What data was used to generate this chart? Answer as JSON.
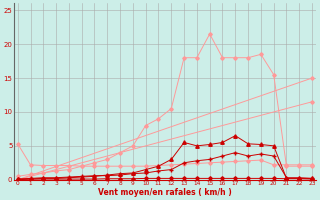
{
  "xlabel": "Vent moyen/en rafales ( km/h )",
  "background_color": "#cceee8",
  "grid_color": "#aaaaaa",
  "x_ticks": [
    0,
    1,
    2,
    3,
    4,
    5,
    6,
    7,
    8,
    9,
    10,
    11,
    12,
    13,
    14,
    15,
    16,
    17,
    18,
    19,
    20,
    21,
    22,
    23
  ],
  "y_ticks": [
    0,
    5,
    10,
    15,
    20,
    25
  ],
  "ylim": [
    0,
    26
  ],
  "xlim": [
    -0.3,
    23.3
  ],
  "ref_line1_x": [
    0,
    23
  ],
  "ref_line1_y": [
    0,
    15.0
  ],
  "ref_line1_color": "#ff9999",
  "ref_line2_x": [
    0,
    23
  ],
  "ref_line2_y": [
    0,
    11.5
  ],
  "ref_line2_color": "#ff9999",
  "flat_line_x": [
    0,
    1,
    2,
    3,
    4,
    5,
    6,
    7,
    8,
    9,
    10,
    11,
    12,
    13,
    14,
    15,
    16,
    17,
    18,
    19,
    20,
    21,
    22,
    23
  ],
  "flat_line_y": [
    5.3,
    2.2,
    2.1,
    2.1,
    2.1,
    2.0,
    2.0,
    2.0,
    2.0,
    2.0,
    2.0,
    2.1,
    2.2,
    2.3,
    2.4,
    2.5,
    2.6,
    2.7,
    2.8,
    2.9,
    2.2,
    2.2,
    2.2,
    2.2
  ],
  "flat_line_color": "#ff9999",
  "peak_line_x": [
    0,
    1,
    2,
    3,
    4,
    5,
    6,
    7,
    8,
    9,
    10,
    11,
    12,
    13,
    14,
    15,
    16,
    17,
    18,
    19,
    20,
    21,
    22,
    23
  ],
  "peak_line_y": [
    0.5,
    0.8,
    1.0,
    1.3,
    1.5,
    2.0,
    2.5,
    3.0,
    4.0,
    5.0,
    8.0,
    9.0,
    10.5,
    18.0,
    18.0,
    21.5,
    18.0,
    18.0,
    18.0,
    18.5,
    15.5,
    2.0,
    2.0,
    2.0
  ],
  "peak_line_color": "#ff9999",
  "dark_line1_x": [
    0,
    1,
    2,
    3,
    4,
    5,
    6,
    7,
    8,
    9,
    10,
    11,
    12,
    13,
    14,
    15,
    16,
    17,
    18,
    19,
    20,
    21,
    22,
    23
  ],
  "dark_line1_y": [
    0.1,
    0.1,
    0.1,
    0.1,
    0.1,
    0.1,
    0.1,
    0.15,
    0.15,
    0.15,
    0.2,
    0.2,
    0.2,
    0.2,
    0.2,
    0.2,
    0.2,
    0.2,
    0.2,
    0.2,
    0.2,
    0.15,
    0.15,
    0.1
  ],
  "dark_line1_color": "#cc0000",
  "dark_line2_x": [
    0,
    1,
    2,
    3,
    4,
    5,
    6,
    7,
    8,
    9,
    10,
    11,
    12,
    13,
    14,
    15,
    16,
    17,
    18,
    19,
    20,
    21,
    22,
    23
  ],
  "dark_line2_y": [
    0.1,
    0.2,
    0.3,
    0.3,
    0.4,
    0.5,
    0.6,
    0.6,
    0.7,
    0.9,
    1.0,
    1.3,
    1.5,
    2.5,
    2.8,
    3.0,
    3.5,
    4.0,
    3.5,
    3.8,
    3.5,
    0.3,
    0.3,
    0.2
  ],
  "dark_line2_color": "#cc0000",
  "dark_line3_x": [
    0,
    1,
    2,
    3,
    4,
    5,
    6,
    7,
    8,
    9,
    10,
    11,
    12,
    13,
    14,
    15,
    16,
    17,
    18,
    19,
    20,
    21,
    22,
    23
  ],
  "dark_line3_y": [
    0.0,
    0.1,
    0.2,
    0.2,
    0.3,
    0.4,
    0.5,
    0.7,
    0.9,
    1.0,
    1.5,
    2.0,
    3.0,
    5.5,
    5.0,
    5.2,
    5.5,
    6.5,
    5.3,
    5.2,
    5.0,
    0.2,
    0.2,
    0.2
  ],
  "dark_line3_color": "#cc0000"
}
